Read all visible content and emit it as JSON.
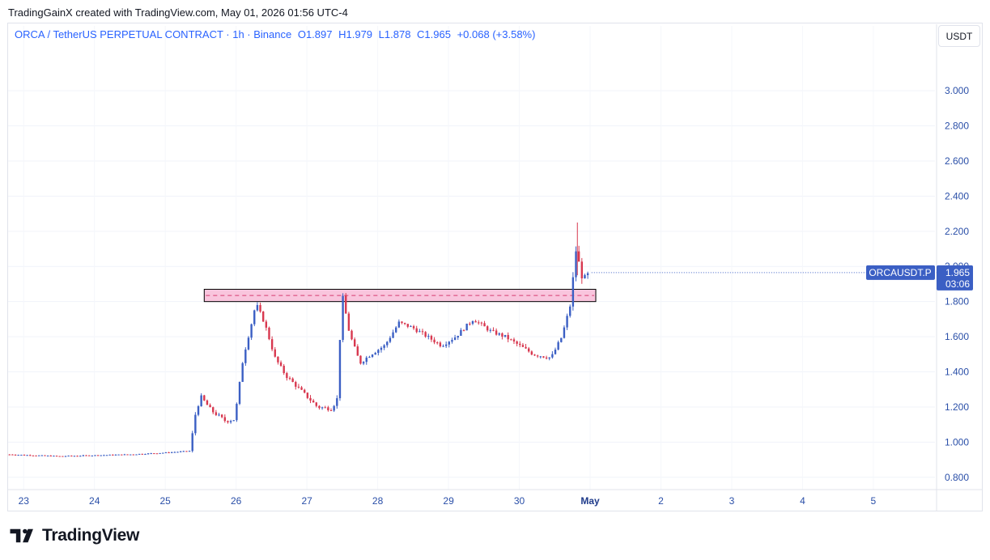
{
  "header": {
    "attribution": "TradingGainX created with TradingView.com, May 01, 2026 01:56 UTC-4"
  },
  "legend": {
    "symbol": "ORCA / TetherUS PERPETUAL CONTRACT · 1h · Binance",
    "open": "O1.897",
    "high": "H1.979",
    "low": "L1.878",
    "close": "C1.965",
    "change": "+0.068 (+3.58%)"
  },
  "currency": "USDT",
  "price_tag": {
    "symbol": "ORCAUSDT.P",
    "price": "1.965",
    "countdown": "03:06"
  },
  "brand": "TradingView",
  "colors": {
    "up": "#3b5fc4",
    "down": "#d8384f",
    "accent": "#2962ff",
    "zone_fill": "#f8bbd7",
    "zone_border": "#000000",
    "dashed": "#d63b71"
  },
  "chart_data": {
    "type": "candlestick",
    "timeframe": "1h",
    "x_tick_labels": [
      "23",
      "24",
      "25",
      "26",
      "27",
      "28",
      "29",
      "30",
      "May",
      "2",
      "3",
      "4",
      "5"
    ],
    "y_tick_labels": [
      "0.800",
      "1.000",
      "1.200",
      "1.400",
      "1.600",
      "1.800",
      "2.000",
      "2.200",
      "2.400",
      "2.600",
      "2.800",
      "3.000"
    ],
    "ylim": [
      0.73,
      3.24
    ],
    "xlim_days": [
      22.78,
      35.87
    ],
    "current_price": 1.965,
    "last_candle": {
      "open": 1.897,
      "high": 1.979,
      "low": 1.878,
      "close": 1.965
    },
    "resistance_zone": {
      "low": 1.8,
      "high": 1.87,
      "mid": 1.835,
      "from_day": 25.55,
      "to_day": 31.08
    },
    "price_path": [
      [
        22.8,
        0.93
      ],
      [
        23.5,
        0.92
      ],
      [
        24.5,
        0.93
      ],
      [
        25.0,
        0.94
      ],
      [
        25.35,
        0.95
      ],
      [
        25.42,
        1.15
      ],
      [
        25.5,
        1.26
      ],
      [
        25.65,
        1.18
      ],
      [
        25.85,
        1.12
      ],
      [
        25.98,
        1.13
      ],
      [
        26.1,
        1.48
      ],
      [
        26.22,
        1.68
      ],
      [
        26.28,
        1.79
      ],
      [
        26.4,
        1.68
      ],
      [
        26.55,
        1.48
      ],
      [
        26.7,
        1.38
      ],
      [
        26.9,
        1.3
      ],
      [
        27.15,
        1.2
      ],
      [
        27.35,
        1.19
      ],
      [
        27.43,
        1.25
      ],
      [
        27.47,
        1.62
      ],
      [
        27.5,
        1.84
      ],
      [
        27.6,
        1.62
      ],
      [
        27.75,
        1.45
      ],
      [
        27.9,
        1.5
      ],
      [
        28.1,
        1.55
      ],
      [
        28.3,
        1.68
      ],
      [
        28.5,
        1.65
      ],
      [
        28.7,
        1.6
      ],
      [
        28.9,
        1.55
      ],
      [
        29.1,
        1.6
      ],
      [
        29.35,
        1.7
      ],
      [
        29.6,
        1.63
      ],
      [
        29.8,
        1.6
      ],
      [
        30.0,
        1.55
      ],
      [
        30.2,
        1.5
      ],
      [
        30.45,
        1.48
      ],
      [
        30.6,
        1.6
      ],
      [
        30.72,
        1.78
      ],
      [
        30.8,
        2.09
      ],
      [
        30.9,
        1.92
      ],
      [
        31.0,
        1.965
      ]
    ]
  }
}
